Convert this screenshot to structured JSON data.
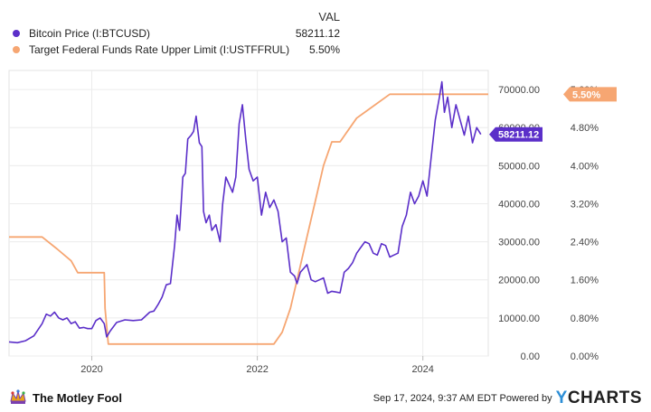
{
  "legend": {
    "header": "VAL",
    "items": [
      {
        "name": "Bitcoin Price (I:BTCUSD)",
        "value": "58211.12",
        "color": "#5b2fc9"
      },
      {
        "name": "Target Federal Funds Rate Upper Limit (I:USTFFRUL)",
        "value": "5.50%",
        "color": "#f6a672"
      }
    ]
  },
  "footer": {
    "brand_left": "The Motley Fool",
    "timestamp": "Sep 17, 2024, 9:37 AM EDT Powered by",
    "brand_right_prefix": "Y",
    "brand_right": "CHARTS"
  },
  "chart_data": {
    "type": "line",
    "x_ticks": [
      "2020",
      "2022",
      "2024"
    ],
    "xlim": [
      2019.0,
      2024.79
    ],
    "y_left": {
      "lim": [
        0,
        75000
      ],
      "ticks": [
        "0.00",
        "10000.00",
        "20000.00",
        "30000.00",
        "40000.00",
        "50000.00",
        "60000.00",
        "70000.00"
      ]
    },
    "y_right": {
      "lim": [
        0,
        6.0
      ],
      "ticks": [
        "0.00%",
        "0.80%",
        "1.60%",
        "2.40%",
        "3.20%",
        "4.00%",
        "4.80%",
        "5.60%"
      ]
    },
    "end_labels": {
      "left_series": "58211.12",
      "right_series": "5.50%"
    },
    "series": [
      {
        "name": "Bitcoin Price (I:BTCUSD)",
        "axis": "left",
        "color": "#5b2fc9",
        "x": [
          2019.0,
          2019.1,
          2019.2,
          2019.3,
          2019.4,
          2019.45,
          2019.5,
          2019.55,
          2019.6,
          2019.65,
          2019.7,
          2019.75,
          2019.8,
          2019.85,
          2019.9,
          2019.95,
          2020.0,
          2020.05,
          2020.1,
          2020.15,
          2020.18,
          2020.22,
          2020.3,
          2020.4,
          2020.5,
          2020.6,
          2020.7,
          2020.75,
          2020.8,
          2020.85,
          2020.9,
          2020.95,
          2021.0,
          2021.03,
          2021.06,
          2021.1,
          2021.13,
          2021.16,
          2021.2,
          2021.23,
          2021.26,
          2021.3,
          2021.33,
          2021.35,
          2021.38,
          2021.42,
          2021.45,
          2021.5,
          2021.55,
          2021.58,
          2021.62,
          2021.66,
          2021.7,
          2021.74,
          2021.78,
          2021.82,
          2021.86,
          2021.9,
          2021.95,
          2022.0,
          2022.05,
          2022.1,
          2022.15,
          2022.2,
          2022.25,
          2022.3,
          2022.35,
          2022.4,
          2022.45,
          2022.48,
          2022.52,
          2022.56,
          2022.6,
          2022.65,
          2022.7,
          2022.75,
          2022.8,
          2022.85,
          2022.9,
          2022.95,
          2023.0,
          2023.05,
          2023.1,
          2023.15,
          2023.2,
          2023.25,
          2023.3,
          2023.35,
          2023.4,
          2023.45,
          2023.5,
          2023.55,
          2023.6,
          2023.65,
          2023.7,
          2023.75,
          2023.8,
          2023.85,
          2023.9,
          2023.95,
          2024.0,
          2024.05,
          2024.1,
          2024.15,
          2024.2,
          2024.23,
          2024.26,
          2024.3,
          2024.35,
          2024.4,
          2024.45,
          2024.5,
          2024.55,
          2024.6,
          2024.65,
          2024.7
        ],
        "y": [
          3700,
          3500,
          4000,
          5300,
          8500,
          11000,
          10500,
          11500,
          10000,
          9500,
          10000,
          8500,
          9000,
          7300,
          7500,
          7200,
          7200,
          9300,
          10000,
          8500,
          5000,
          6500,
          8800,
          9500,
          9300,
          9500,
          11500,
          11800,
          13500,
          15500,
          18700,
          19000,
          29000,
          37000,
          33000,
          47000,
          48000,
          57000,
          58000,
          59000,
          63000,
          56000,
          55000,
          38000,
          35000,
          37000,
          33000,
          34500,
          30000,
          39800,
          47000,
          45000,
          43000,
          47000,
          61000,
          66000,
          57000,
          49000,
          46000,
          47000,
          37000,
          43000,
          39000,
          41000,
          38000,
          30000,
          31000,
          22000,
          21000,
          19000,
          22000,
          23000,
          24000,
          20000,
          19500,
          20000,
          20500,
          16500,
          17000,
          16800,
          16600,
          22000,
          23000,
          24500,
          27000,
          28500,
          30000,
          29500,
          27000,
          26500,
          29500,
          29000,
          26000,
          26500,
          27000,
          34000,
          37000,
          43000,
          40000,
          42000,
          46000,
          42000,
          52000,
          62000,
          68000,
          72000,
          64000,
          68000,
          60000,
          66000,
          62000,
          58000,
          63000,
          56000,
          60000,
          58211
        ],
        "end_value": 58211.12
      },
      {
        "name": "Target Federal Funds Rate Upper Limit (I:USTFFRUL)",
        "axis": "right",
        "color": "#f6a672",
        "x": [
          2019.0,
          2019.4,
          2019.58,
          2019.75,
          2019.83,
          2020.15,
          2020.16,
          2020.2,
          2022.2,
          2022.3,
          2022.4,
          2022.5,
          2022.6,
          2022.7,
          2022.8,
          2022.9,
          2023.0,
          2023.1,
          2023.2,
          2023.4,
          2023.6,
          2024.79
        ],
        "y": [
          2.5,
          2.5,
          2.25,
          2.0,
          1.75,
          1.75,
          1.0,
          0.25,
          0.25,
          0.5,
          1.0,
          1.75,
          2.5,
          3.25,
          4.0,
          4.5,
          4.5,
          4.75,
          5.0,
          5.25,
          5.5,
          5.5
        ],
        "end_value": 5.5
      }
    ]
  }
}
